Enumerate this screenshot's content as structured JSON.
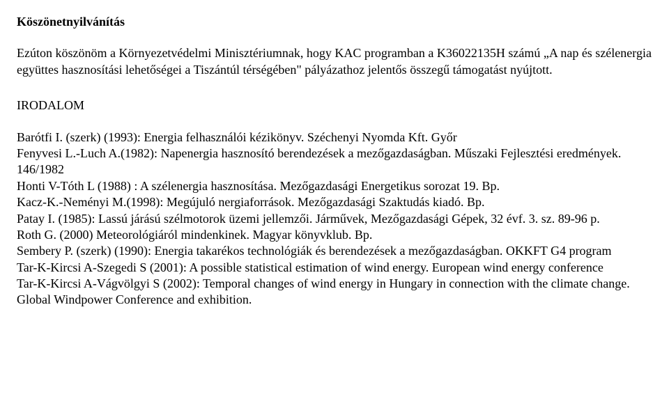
{
  "heading": "Köszönetnyilvánítás",
  "paragraph": "Ezúton köszönöm a Környezetvédelmi Minisztériumnak, hogy KAC programban a K36022135H számú „A nap és szélenergia együttes hasznosítási lehetőségei a Tiszántúl térségében\" pályázathoz jelentős összegű támogatást nyújtott.",
  "irodalom_heading": "IRODALOM",
  "bibliography": "Barótfi I. (szerk) (1993): Energia felhasználói kézikönyv. Széchenyi Nyomda Kft. Győr\nFenyvesi L.-Luch A.(1982): Napenergia hasznosító berendezések a mezőgazdaságban. Műszaki Fejlesztési eredmények. 146/1982\nHonti V-Tóth L (1988) : A szélenergia hasznosítása. Mezőgazdasági Energetikus sorozat 19. Bp.\nKacz-K.-Neményi M.(1998): Megújuló nergiaforrások. Mezőgazdasági Szaktudás kiadó. Bp.\nPatay I. (1985): Lassú járású szélmotorok üzemi jellemzői. Járművek, Mezőgazdasági Gépek, 32 évf. 3. sz. 89-96 p.\nRoth G. (2000) Meteorológiáról mindenkinek. Magyar könyvklub. Bp.\nSembery P. (szerk) (1990): Energia takarékos technológiák és berendezések a mezőgazdaságban. OKKFT G4 program\nTar-K-Kircsi A-Szegedi S (2001): A possible statistical estimation of wind energy. European wind energy conference\nTar-K-Kircsi A-Vágvölgyi S (2002): Temporal changes of wind energy in Hungary in connection with the climate change. Global Windpower Conference and exhibition."
}
